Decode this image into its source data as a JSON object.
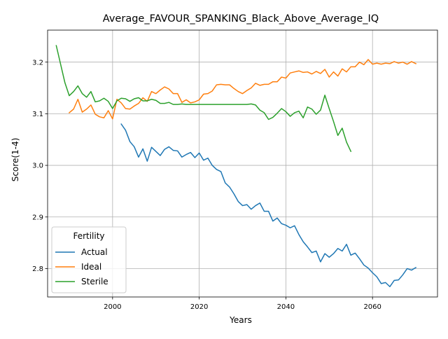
{
  "chart_data": {
    "type": "line",
    "title": "Average_FAVOUR_SPANKING_Black_Above_Average_IQ",
    "xlabel": "Years",
    "ylabel": "Score(1-4)",
    "xlim": [
      1985,
      2075
    ],
    "ylim": [
      2.745,
      3.262
    ],
    "x_ticks": [
      2000,
      2020,
      2040,
      2060
    ],
    "y_ticks": [
      2.8,
      2.9,
      3.0,
      3.1,
      3.2
    ],
    "x_tick_labels": [
      "2000",
      "2020",
      "2040",
      "2060"
    ],
    "y_tick_labels": [
      "2.8",
      "2.9",
      "3.0",
      "3.1",
      "3.2"
    ],
    "grid": true,
    "legend": {
      "title": "Fertility",
      "placement": "lower-left"
    },
    "series": [
      {
        "name": "Actual",
        "color": "#1f77b4",
        "x": [
          2002,
          2003,
          2004,
          2005,
          2006,
          2007,
          2008,
          2009,
          2010,
          2011,
          2012,
          2013,
          2014,
          2015,
          2016,
          2017,
          2018,
          2019,
          2020,
          2021,
          2022,
          2023,
          2024,
          2025,
          2026,
          2027,
          2028,
          2029,
          2030,
          2031,
          2032,
          2033,
          2034,
          2035,
          2036,
          2037,
          2038,
          2039,
          2040,
          2041,
          2042,
          2043,
          2044,
          2045,
          2046,
          2047,
          2048,
          2049,
          2050,
          2051,
          2052,
          2053,
          2054,
          2055,
          2056,
          2057,
          2058,
          2059,
          2060,
          2061,
          2062,
          2063,
          2064,
          2065,
          2066,
          2067,
          2068,
          2069,
          2070
        ],
        "values": [
          3.08,
          3.068,
          3.046,
          3.036,
          3.016,
          3.032,
          3.008,
          3.035,
          3.027,
          3.019,
          3.031,
          3.036,
          3.029,
          3.028,
          3.016,
          3.021,
          3.025,
          3.015,
          3.024,
          3.01,
          3.014,
          3.0,
          2.992,
          2.988,
          2.966,
          2.958,
          2.945,
          2.93,
          2.922,
          2.924,
          2.915,
          2.922,
          2.927,
          2.911,
          2.911,
          2.892,
          2.898,
          2.887,
          2.884,
          2.879,
          2.883,
          2.866,
          2.852,
          2.842,
          2.831,
          2.834,
          2.813,
          2.829,
          2.822,
          2.829,
          2.839,
          2.834,
          2.847,
          2.826,
          2.83,
          2.819,
          2.807,
          2.801,
          2.792,
          2.784,
          2.771,
          2.773,
          2.765,
          2.777,
          2.778,
          2.788,
          2.8,
          2.797,
          2.802
        ]
      },
      {
        "name": "Ideal",
        "color": "#ff7f0e",
        "x": [
          1990,
          1991,
          1992,
          1993,
          1994,
          1995,
          1996,
          1997,
          1998,
          1999,
          2000,
          2001,
          2002,
          2003,
          2004,
          2005,
          2006,
          2007,
          2008,
          2009,
          2010,
          2011,
          2012,
          2013,
          2014,
          2015,
          2016,
          2017,
          2018,
          2019,
          2020,
          2021,
          2022,
          2023,
          2024,
          2025,
          2026,
          2027,
          2028,
          2029,
          2030,
          2031,
          2032,
          2033,
          2034,
          2035,
          2036,
          2037,
          2038,
          2039,
          2040,
          2041,
          2042,
          2043,
          2044,
          2045,
          2046,
          2047,
          2048,
          2049,
          2050,
          2051,
          2052,
          2053,
          2054,
          2055,
          2056,
          2057,
          2058,
          2059,
          2060,
          2061,
          2062,
          2063,
          2064,
          2065,
          2066,
          2067,
          2068,
          2069,
          2070
        ],
        "values": [
          3.102,
          3.109,
          3.128,
          3.103,
          3.109,
          3.117,
          3.099,
          3.094,
          3.092,
          3.106,
          3.09,
          3.128,
          3.121,
          3.11,
          3.109,
          3.115,
          3.12,
          3.131,
          3.124,
          3.143,
          3.139,
          3.146,
          3.152,
          3.148,
          3.139,
          3.139,
          3.122,
          3.127,
          3.121,
          3.123,
          3.127,
          3.138,
          3.139,
          3.144,
          3.156,
          3.157,
          3.156,
          3.156,
          3.149,
          3.143,
          3.139,
          3.145,
          3.15,
          3.159,
          3.155,
          3.157,
          3.157,
          3.162,
          3.162,
          3.171,
          3.169,
          3.179,
          3.181,
          3.183,
          3.18,
          3.181,
          3.177,
          3.182,
          3.178,
          3.186,
          3.171,
          3.181,
          3.173,
          3.187,
          3.181,
          3.191,
          3.191,
          3.2,
          3.195,
          3.205,
          3.196,
          3.198,
          3.196,
          3.198,
          3.197,
          3.201,
          3.198,
          3.2,
          3.196,
          3.201,
          3.197
        ]
      },
      {
        "name": "Sterile",
        "color": "#2ca02c",
        "x": [
          1987,
          1988,
          1989,
          1990,
          1991,
          1992,
          1993,
          1994,
          1995,
          1996,
          1997,
          1998,
          1999,
          2000,
          2001,
          2002,
          2003,
          2004,
          2005,
          2006,
          2007,
          2008,
          2009,
          2010,
          2011,
          2012,
          2013,
          2014,
          2015,
          2016,
          2017,
          2018,
          2019,
          2020,
          2021,
          2022,
          2023,
          2024,
          2025,
          2026,
          2027,
          2028,
          2029,
          2030,
          2031,
          2032,
          2033,
          2034,
          2035,
          2036,
          2037,
          2038,
          2039,
          2040,
          2041,
          2042,
          2043,
          2044,
          2045,
          2046,
          2047,
          2048,
          2049,
          2050,
          2051,
          2052,
          2053,
          2054,
          2055
        ],
        "values": [
          3.232,
          3.196,
          3.16,
          3.135,
          3.143,
          3.154,
          3.139,
          3.132,
          3.143,
          3.123,
          3.125,
          3.13,
          3.124,
          3.11,
          3.125,
          3.13,
          3.129,
          3.124,
          3.129,
          3.131,
          3.125,
          3.125,
          3.128,
          3.126,
          3.12,
          3.12,
          3.122,
          3.118,
          3.118,
          3.119,
          3.118,
          3.118,
          3.118,
          3.118,
          3.118,
          3.118,
          3.118,
          3.118,
          3.118,
          3.118,
          3.118,
          3.118,
          3.118,
          3.118,
          3.118,
          3.119,
          3.117,
          3.107,
          3.102,
          3.089,
          3.093,
          3.101,
          3.11,
          3.104,
          3.095,
          3.102,
          3.105,
          3.092,
          3.113,
          3.109,
          3.099,
          3.107,
          3.136,
          3.11,
          3.085,
          3.058,
          3.072,
          3.045,
          3.027
        ]
      }
    ]
  }
}
